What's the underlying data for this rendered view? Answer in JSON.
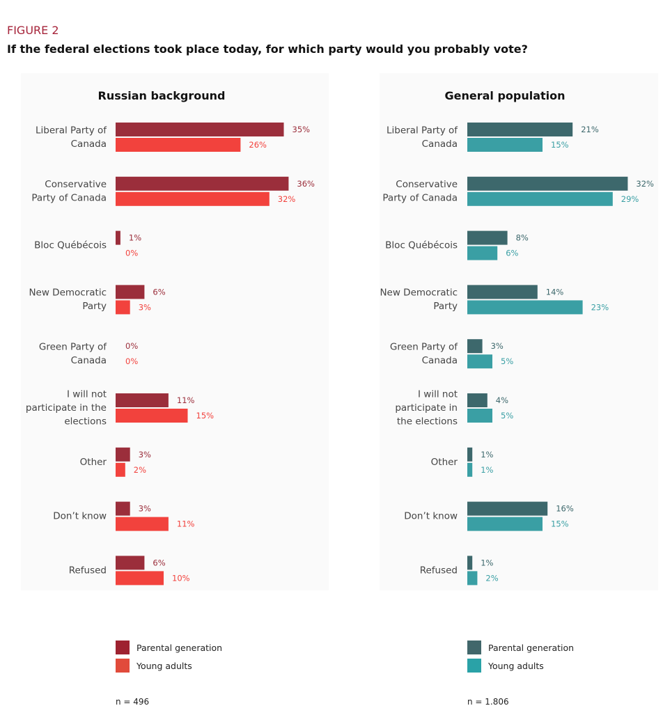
{
  "figure_label": "FIGURE 2",
  "title": "If the federal elections took place today, for which party would you probably vote?",
  "chart_data": [
    {
      "type": "bar",
      "orientation": "horizontal",
      "title": "Russian background",
      "categories": [
        "Liberal Party of|Canada",
        "Conservative|Party of Canada",
        "Bloc Québécois",
        "New Democratic|Party",
        "Green Party of|Canada",
        "I will not|participate in the|elections",
        "Other",
        "Don’t know",
        "Refused"
      ],
      "series": [
        {
          "name": "Parental generation",
          "color": "#9b2e3b",
          "values": [
            35,
            36,
            1,
            6,
            0,
            11,
            3,
            3,
            6
          ]
        },
        {
          "name": "Young adults",
          "color": "#f2423d",
          "values": [
            26,
            32,
            0,
            3,
            0,
            15,
            2,
            11,
            10
          ]
        }
      ],
      "legend": [
        "Parental generation",
        "Young adults"
      ],
      "legend_colors": [
        "#9e2230",
        "#e14b3b"
      ],
      "note": "n = 496",
      "unit": "%"
    },
    {
      "type": "bar",
      "orientation": "horizontal",
      "title": "General population",
      "categories": [
        "Liberal Party of|Canada",
        "Conservative|Party of Canada",
        "Bloc Québécois",
        "New Democratic|Party",
        "Green Party of|Canada",
        "I will not|participate in|the elections",
        "Other",
        "Don’t know",
        "Refused"
      ],
      "series": [
        {
          "name": "Parental generation",
          "color": "#3d686c",
          "values": [
            21,
            32,
            8,
            14,
            3,
            4,
            1,
            16,
            1
          ]
        },
        {
          "name": "Young adults",
          "color": "#3a9fa4",
          "values": [
            15,
            29,
            6,
            23,
            5,
            5,
            1,
            15,
            2
          ]
        }
      ],
      "legend": [
        "Parental generation",
        "Young adults"
      ],
      "legend_colors": [
        "#41676b",
        "#2aa2a7"
      ],
      "note": "n = 1.806",
      "unit": "%"
    }
  ]
}
